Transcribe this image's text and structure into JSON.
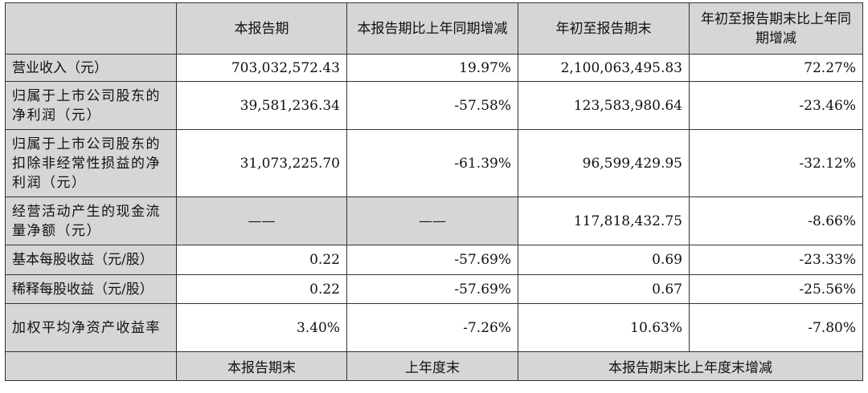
{
  "header": {
    "corner": "",
    "cols": [
      "本报告期",
      "本报告期比上年同期增减",
      "年初至报告期末",
      "年初至报告期末比上年同期增减"
    ]
  },
  "rows": [
    {
      "label": "营业收入（元）",
      "values": [
        "703,032,572.43",
        "19.97%",
        "2,100,063,495.83",
        "72.27%"
      ]
    },
    {
      "label": "归属于上市公司股东的净利润（元）",
      "values": [
        "39,581,236.34",
        "-57.58%",
        "123,583,980.64",
        "-23.46%"
      ]
    },
    {
      "label": "归属于上市公司股东的扣除非经常性损益的净利润（元）",
      "values": [
        "31,073,225.70",
        "-61.39%",
        "96,599,429.95",
        "-32.12%"
      ]
    },
    {
      "label": "经营活动产生的现金流量净额（元）",
      "values": [
        "——",
        "——",
        "117,818,432.75",
        "-8.66%"
      ]
    },
    {
      "label": "基本每股收益（元/股）",
      "values": [
        "0.22",
        "-57.69%",
        "0.69",
        "-23.33%"
      ]
    },
    {
      "label": "稀释每股收益（元/股）",
      "values": [
        "0.22",
        "-57.69%",
        "0.67",
        "-25.56%"
      ]
    },
    {
      "label": "加权平均净资产收益率",
      "values": [
        "3.40%",
        "-7.26%",
        "10.63%",
        "-7.80%"
      ]
    }
  ],
  "footer": {
    "corner": "",
    "cols": [
      "本报告期末",
      "上年度末",
      "本报告期末比上年度末增减"
    ]
  }
}
